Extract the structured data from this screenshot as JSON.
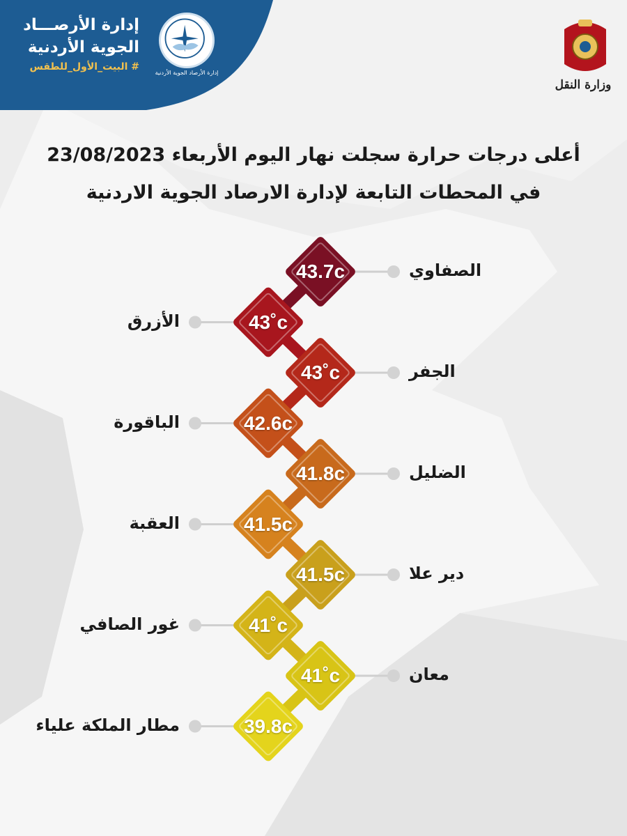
{
  "header": {
    "org_line1": "إدارة الأرصـــاد",
    "org_line2": "الجوية الأردنية",
    "hashtag": "# البيت_الأول_للطقس",
    "logo_caption": "إدارة الأرصاد الجوية الأردنية",
    "ministry": "وزارة النقل",
    "banner_color": "#1d5c93"
  },
  "title": {
    "line1": "أعلى درجات حرارة سجلت نهار اليوم الأربعاء 23/08/2023",
    "line2": "في المحطات التابعة لإدارة الارصاد الجوية الاردنية"
  },
  "stations": [
    {
      "name": "الصفاوي",
      "temp": "43.7c",
      "value": 43.7,
      "color": "#7a1024"
    },
    {
      "name": "الأزرق",
      "temp": "43˚c",
      "value": 43,
      "color": "#a8161e"
    },
    {
      "name": "الجفر",
      "temp": "43˚c",
      "value": 43,
      "color": "#b4281a"
    },
    {
      "name": "الباقورة",
      "temp": "42.6c",
      "value": 42.6,
      "color": "#c4501a"
    },
    {
      "name": "الضليل",
      "temp": "41.8c",
      "value": 41.8,
      "color": "#c86a1c"
    },
    {
      "name": "العقبة",
      "temp": "41.5c",
      "value": 41.5,
      "color": "#d6821e"
    },
    {
      "name": "دير علا",
      "temp": "41.5c",
      "value": 41.5,
      "color": "#c9a01c"
    },
    {
      "name": "غور الصافي",
      "temp": "41˚c",
      "value": 41,
      "color": "#d4b418"
    },
    {
      "name": "معان",
      "temp": "41˚c",
      "value": 41,
      "color": "#d8c416"
    },
    {
      "name": "مطار الملكة علياء",
      "temp": "39.8c",
      "value": 39.8,
      "color": "#e4d41c"
    }
  ]
}
